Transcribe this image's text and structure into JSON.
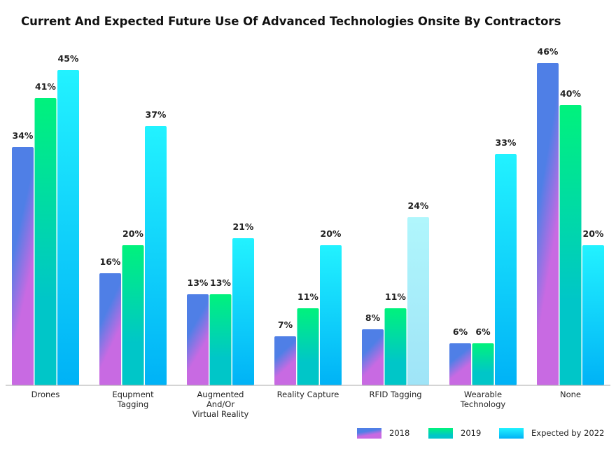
{
  "chart_data": {
    "type": "bar",
    "title": "Current And Expected Future Use Of Advanced Technologies Onsite By Contractors",
    "xlabel": "",
    "ylabel": "",
    "ylim": [
      0,
      50
    ],
    "grid": false,
    "legend_position": "bottom-right",
    "categories": [
      [
        "Drones"
      ],
      [
        "Equpment",
        "Tagging"
      ],
      [
        "Augmented",
        "And/Or",
        "Virtual Reality"
      ],
      [
        "Reality Capture"
      ],
      [
        "RFID Tagging"
      ],
      [
        "Wearable",
        "Technology"
      ],
      [
        "None"
      ]
    ],
    "series": [
      {
        "name": "2018",
        "values": [
          34,
          16,
          13,
          7,
          8,
          6,
          46
        ],
        "labels": [
          "34%",
          "16%",
          "13%",
          "7%",
          "8%",
          "6%",
          "46%"
        ],
        "colors": [
          "#4f7fe6",
          "#c86ae2"
        ]
      },
      {
        "name": "2019",
        "values": [
          41,
          20,
          13,
          11,
          11,
          6,
          40
        ],
        "labels": [
          "41%",
          "20%",
          "13%",
          "11%",
          "11%",
          "6%",
          "40%"
        ],
        "colors": [
          "#00f27c",
          "#00c6c8"
        ]
      },
      {
        "name": "Expected by 2022",
        "values": [
          45,
          37,
          21,
          20,
          24,
          33,
          20
        ],
        "labels": [
          "45%",
          "37%",
          "21%",
          "20%",
          "24%",
          "33%",
          "20%"
        ],
        "colors": [
          "#22f2ff",
          "#00b2f6"
        ]
      }
    ]
  }
}
